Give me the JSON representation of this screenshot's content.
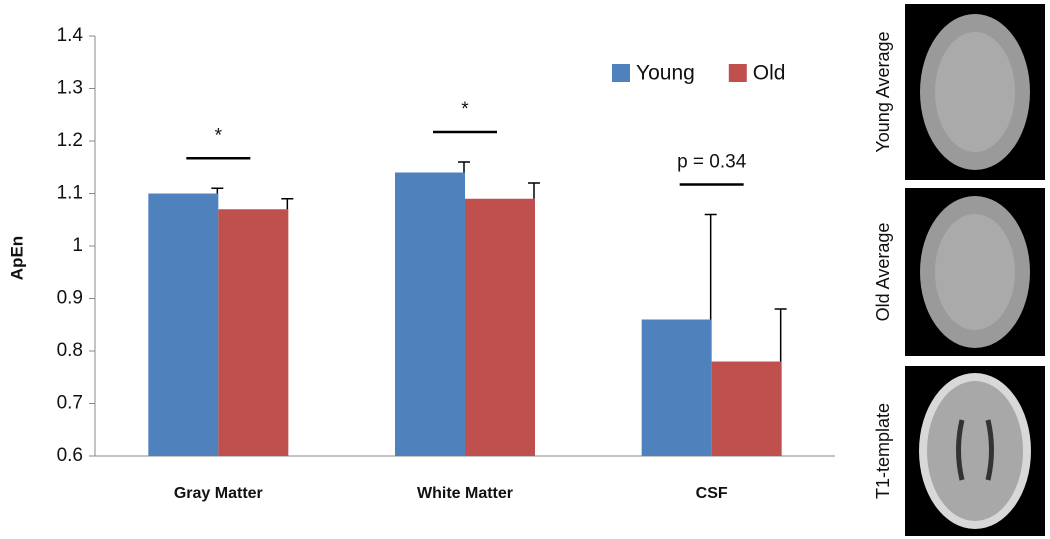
{
  "chart_data": {
    "type": "bar",
    "y_label": "ApEn",
    "categories": [
      "Gray Matter",
      "White Matter",
      "CSF"
    ],
    "series": [
      {
        "name": "Young",
        "color": "#4f81bd",
        "values": [
          1.1,
          1.14,
          0.86
        ],
        "errors": [
          0.01,
          0.02,
          0.2
        ]
      },
      {
        "name": "Old",
        "color": "#c0504d",
        "values": [
          1.07,
          1.09,
          0.78
        ],
        "errors": [
          0.02,
          0.03,
          0.1
        ]
      }
    ],
    "annotations": [
      "*",
      "*",
      "p = 0.34"
    ],
    "ylim": [
      0.6,
      1.4
    ],
    "yticks": [
      0.6,
      0.7,
      0.8,
      0.9,
      1,
      1.1,
      1.2,
      1.3,
      1.4
    ],
    "grid": false,
    "legend": "top-right"
  },
  "images": [
    "Young Average",
    "Old Average",
    "T1-template"
  ]
}
